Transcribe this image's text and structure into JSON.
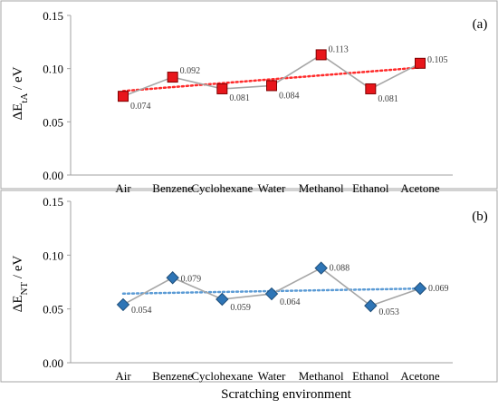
{
  "figure": {
    "x_axis_title": "Scratching environment",
    "x_axis_title_visible_on": "bottom panel only"
  },
  "colors": {
    "line_gray": "#a6a6a6",
    "axis_gray": "#a0a0a0",
    "a_marker_fill": "#e8161b",
    "a_marker_stroke": "#7f0000",
    "a_trend": "#ff2a2a",
    "b_marker_fill": "#2e75b6",
    "b_marker_stroke": "#1f4e79",
    "b_trend": "#5b9bd5",
    "label_text": "#404040"
  },
  "chart_data": [
    {
      "type": "line",
      "panel_label": "(a)",
      "ylabel_main": "ΔE",
      "ylabel_sub": "tA",
      "ylabel_unit": " / eV",
      "categories": [
        "Air",
        "Benzene",
        "Cyclohexane",
        "Water",
        "Methanol",
        "Ethanol",
        "Acetone"
      ],
      "series": [
        {
          "values": [
            0.074,
            0.092,
            0.081,
            0.084,
            0.113,
            0.081,
            0.105
          ],
          "marker": "square",
          "data_labels": [
            "0.074",
            "0.092",
            "0.081",
            "0.084",
            "0.113",
            "0.081",
            "0.105"
          ]
        }
      ],
      "trendline": {
        "type": "linear",
        "style": "dotted"
      },
      "ylim": [
        0.0,
        0.15
      ],
      "yticks": [
        "0.00",
        "0.05",
        "0.10",
        "0.15"
      ],
      "grid": false,
      "legend": "none"
    },
    {
      "type": "line",
      "panel_label": "(b)",
      "ylabel_main": "ΔE",
      "ylabel_sub": "NT",
      "ylabel_unit": " / eV",
      "categories": [
        "Air",
        "Benzene",
        "Cyclohexane",
        "Water",
        "Methanol",
        "Ethanol",
        "Acetone"
      ],
      "series": [
        {
          "values": [
            0.054,
            0.079,
            0.059,
            0.064,
            0.088,
            0.053,
            0.069
          ],
          "marker": "diamond",
          "data_labels": [
            "0.054",
            "0.079",
            "0.059",
            "0.064",
            "0.088",
            "0.053",
            "0.069"
          ]
        }
      ],
      "trendline": {
        "type": "linear",
        "style": "dotted"
      },
      "ylim": [
        0.0,
        0.15
      ],
      "yticks": [
        "0.00",
        "0.05",
        "0.10",
        "0.15"
      ],
      "grid": false,
      "legend": "none"
    }
  ]
}
